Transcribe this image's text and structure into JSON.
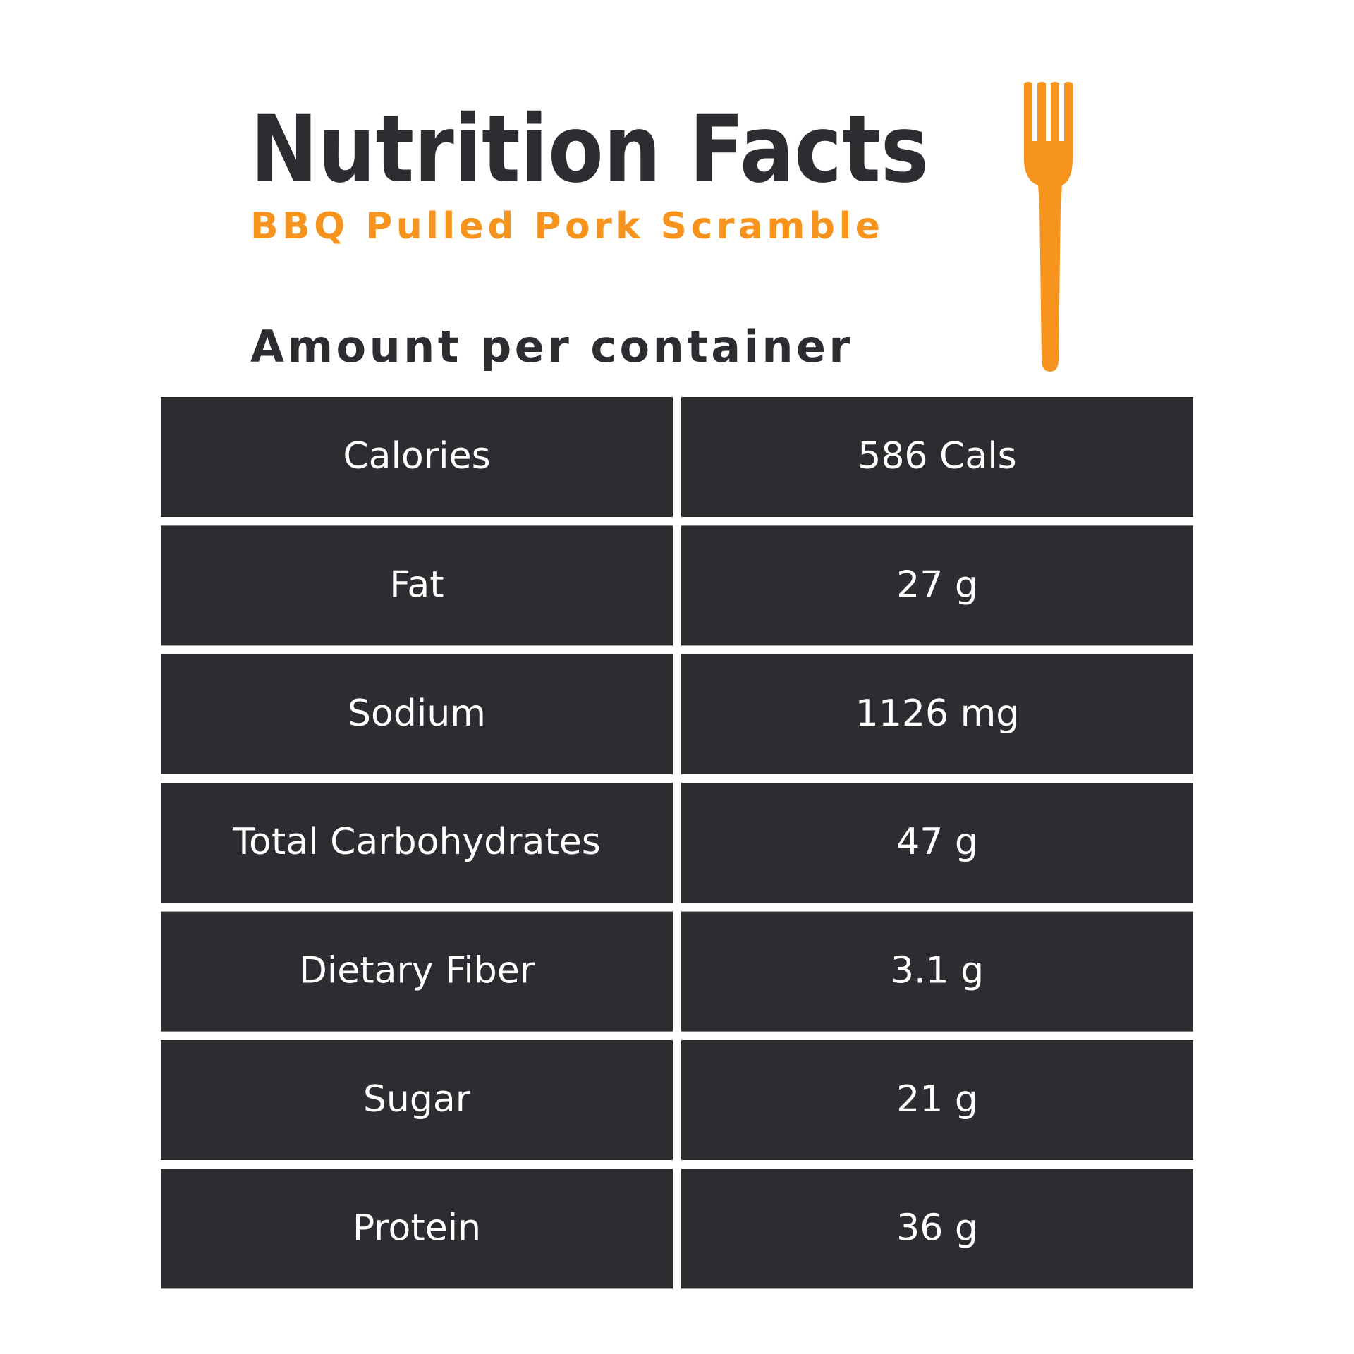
{
  "header": {
    "title": "Nutrition Facts",
    "subtitle": "BBQ Pulled Pork Scramble",
    "section": "Amount per container"
  },
  "table": {
    "rows": [
      [
        "Calories",
        "586 Cals"
      ],
      [
        "Fat",
        "27 g"
      ],
      [
        "Sodium",
        "1126 mg"
      ],
      [
        "Total Carbohydrates",
        "47 g"
      ],
      [
        "Dietary Fiber",
        "3.1 g"
      ],
      [
        "Sugar",
        "21 g"
      ],
      [
        "Protein",
        "36 g"
      ]
    ]
  }
}
